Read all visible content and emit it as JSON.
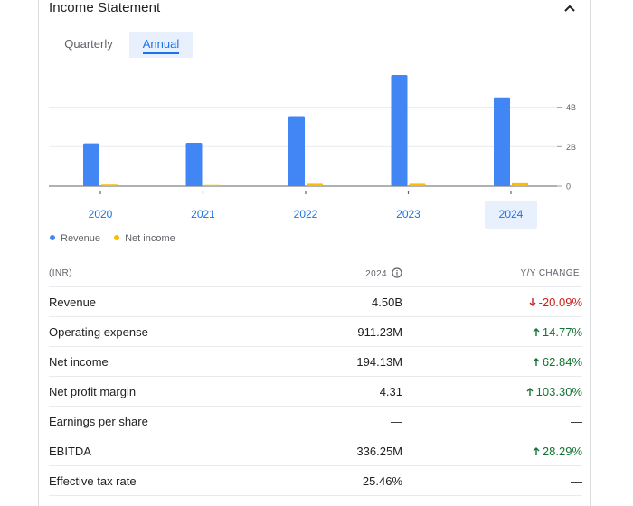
{
  "header": {
    "title": "Income Statement"
  },
  "tabs": [
    {
      "label": "Quarterly",
      "active": false
    },
    {
      "label": "Annual",
      "active": true
    }
  ],
  "chart_data": {
    "type": "bar",
    "categories": [
      "2020",
      "2021",
      "2022",
      "2023",
      "2024"
    ],
    "selected_category": "2024",
    "series": [
      {
        "name": "Revenue",
        "color": "#4285f4",
        "values": [
          2.17,
          2.2,
          3.55,
          5.63,
          4.5
        ]
      },
      {
        "name": "Net income",
        "color": "#fbbc04",
        "values": [
          0.08,
          0.06,
          0.12,
          0.12,
          0.19
        ]
      }
    ],
    "y_ticks": [
      {
        "value": 0,
        "label": "0"
      },
      {
        "value": 2,
        "label": "2B"
      },
      {
        "value": 4,
        "label": "4B"
      }
    ],
    "ylim": [
      0,
      6.5
    ],
    "legend_position": "bottom-left",
    "grid": true
  },
  "table": {
    "headers": {
      "label": "(INR)",
      "year": "2024",
      "change": "Y/Y CHANGE"
    },
    "rows": [
      {
        "label": "Revenue",
        "value": "4.50B",
        "change": "-20.09%",
        "direction": "down"
      },
      {
        "label": "Operating expense",
        "value": "911.23M",
        "change": "14.77%",
        "direction": "up"
      },
      {
        "label": "Net income",
        "value": "194.13M",
        "change": "62.84%",
        "direction": "up"
      },
      {
        "label": "Net profit margin",
        "value": "4.31",
        "change": "103.30%",
        "direction": "up"
      },
      {
        "label": "Earnings per share",
        "value": "—",
        "change": "—",
        "direction": "none"
      },
      {
        "label": "EBITDA",
        "value": "336.25M",
        "change": "28.29%",
        "direction": "up"
      },
      {
        "label": "Effective tax rate",
        "value": "25.46%",
        "change": "—",
        "direction": "none"
      }
    ]
  },
  "icons": {
    "collapse": "chevron-up-icon",
    "info": "info-icon",
    "up": "arrow-up-icon",
    "down": "arrow-down-icon"
  }
}
